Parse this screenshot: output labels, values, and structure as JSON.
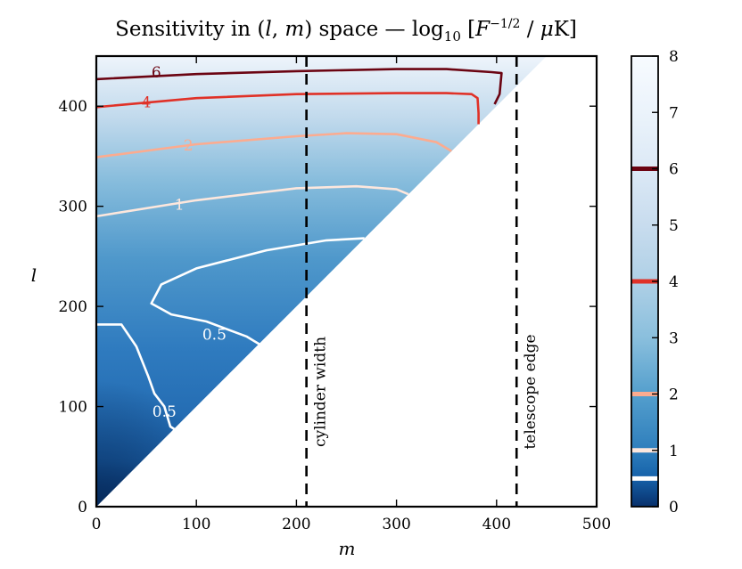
{
  "chart_data": {
    "type": "heatmap",
    "title_parts": {
      "pre": "Sensitivity in ",
      "lparen": "(",
      "l": "l",
      "comma": ", ",
      "m": "m",
      "rparen": ")",
      "mid": " space — log",
      "sub": "10",
      "lbrack": " [",
      "F": "F",
      "sup": "−1/2",
      "slash": " / ",
      "mu": "μ",
      "unit": "K]"
    },
    "xlabel": "m",
    "ylabel": "l",
    "xlim": [
      0,
      500
    ],
    "ylim": [
      0,
      450
    ],
    "xticks": [
      0,
      100,
      200,
      300,
      400,
      500
    ],
    "yticks": [
      0,
      100,
      200,
      300,
      400
    ],
    "colorbar": {
      "range": [
        0,
        8
      ],
      "ticks": [
        0,
        1,
        2,
        3,
        4,
        5,
        6,
        7,
        8
      ],
      "contour_marks": [
        {
          "level": 0.5,
          "color": "#ffffff"
        },
        {
          "level": 1,
          "color": "#fde7dd"
        },
        {
          "level": 2,
          "color": "#fcab8f"
        },
        {
          "level": 4,
          "color": "#e03127"
        },
        {
          "level": 6,
          "color": "#6b0412"
        }
      ]
    },
    "contours": [
      {
        "label": "6",
        "level": 6,
        "color": "#6b0412",
        "points": [
          [
            0,
            427
          ],
          [
            100,
            432
          ],
          [
            200,
            435
          ],
          [
            300,
            437
          ],
          [
            350,
            437
          ],
          [
            395,
            434
          ],
          [
            405,
            433
          ],
          [
            403,
            412
          ],
          [
            398,
            402
          ]
        ]
      },
      {
        "label": "4",
        "level": 4,
        "color": "#e03127",
        "points": [
          [
            0,
            399
          ],
          [
            100,
            408
          ],
          [
            200,
            412
          ],
          [
            300,
            413
          ],
          [
            350,
            413
          ],
          [
            375,
            412
          ],
          [
            381,
            408
          ],
          [
            382,
            393
          ],
          [
            382,
            382
          ]
        ]
      },
      {
        "label": "2",
        "level": 2,
        "color": "#fcab8f",
        "points": [
          [
            0,
            349
          ],
          [
            100,
            362
          ],
          [
            200,
            370
          ],
          [
            250,
            373
          ],
          [
            300,
            372
          ],
          [
            340,
            364
          ],
          [
            355,
            355
          ]
        ]
      },
      {
        "label": "1",
        "level": 1,
        "color": "#fde7dd",
        "points": [
          [
            0,
            290
          ],
          [
            100,
            306
          ],
          [
            200,
            318
          ],
          [
            260,
            320
          ],
          [
            300,
            317
          ],
          [
            312,
            312
          ]
        ]
      },
      {
        "label": "0.5",
        "level": 0.5,
        "color": "#ffffff",
        "points": [
          [
            268,
            268
          ],
          [
            230,
            266
          ],
          [
            170,
            256
          ],
          [
            100,
            238
          ],
          [
            65,
            222
          ],
          [
            55,
            203
          ],
          [
            75,
            192
          ],
          [
            110,
            185
          ],
          [
            150,
            170
          ],
          [
            170,
            158
          ],
          [
            155,
            148
          ]
        ]
      },
      {
        "label": "0.5",
        "level": 0.5,
        "color": "#ffffff",
        "points": [
          [
            0,
            182
          ],
          [
            25,
            182
          ],
          [
            40,
            160
          ],
          [
            52,
            130
          ],
          [
            58,
            113
          ],
          [
            68,
            100
          ],
          [
            74,
            80
          ],
          [
            80,
            76
          ]
        ]
      }
    ],
    "contour_labels": [
      {
        "text": "6",
        "x": 60,
        "y": 434,
        "color": "#6b0412"
      },
      {
        "text": "4",
        "x": 50,
        "y": 404,
        "color": "#e03127"
      },
      {
        "text": "2",
        "x": 92,
        "y": 361,
        "color": "#fcab8f"
      },
      {
        "text": "1",
        "x": 83,
        "y": 302,
        "color": "#fde7dd"
      },
      {
        "text": "0.5",
        "x": 118,
        "y": 172,
        "color": "#ffffff"
      },
      {
        "text": "0.5",
        "x": 68,
        "y": 95,
        "color": "#ffffff"
      }
    ],
    "vlines": [
      {
        "x": 210,
        "label": "cylinder width"
      },
      {
        "x": 420,
        "label": "telescope edge"
      }
    ],
    "valid_region": "l ≥ m (upper-left triangle)"
  }
}
